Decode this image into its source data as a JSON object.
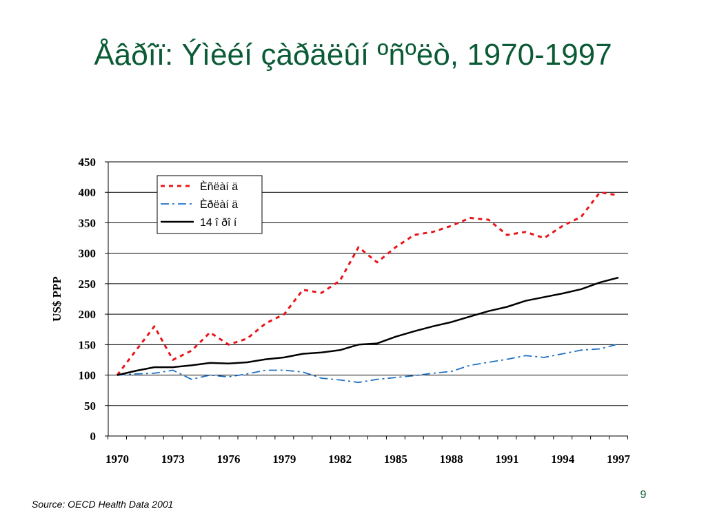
{
  "slide": {
    "title": "Åâðîï: Ýìèéí çàðäëûí ºñºëò, 1970-1997",
    "source": "Source: OECD Health Data 2001",
    "page_number": "9",
    "title_color": "#0b5b36"
  },
  "chart_data": {
    "type": "line",
    "title": "",
    "xlabel": "",
    "ylabel": "US$ PPP",
    "ylim": [
      0,
      450
    ],
    "yticks": [
      0,
      50,
      100,
      150,
      200,
      250,
      300,
      350,
      400,
      450
    ],
    "xtick_labels": [
      "1970",
      "1973",
      "1976",
      "1979",
      "1982",
      "1985",
      "1988",
      "1991",
      "1994",
      "1997"
    ],
    "grid": "horizontal",
    "legend_position": "top-left",
    "x": [
      1970,
      1971,
      1972,
      1973,
      1974,
      1975,
      1976,
      1977,
      1978,
      1979,
      1980,
      1981,
      1982,
      1983,
      1984,
      1985,
      1986,
      1987,
      1988,
      1989,
      1990,
      1991,
      1992,
      1993,
      1994,
      1995,
      1996,
      1997
    ],
    "series": [
      {
        "name": "Èñëàí ä",
        "color": "#e8141a",
        "style": "dotted",
        "values": [
          100,
          140,
          180,
          125,
          140,
          170,
          150,
          160,
          185,
          200,
          240,
          235,
          255,
          310,
          285,
          310,
          330,
          335,
          345,
          358,
          355,
          330,
          335,
          325,
          345,
          360,
          400,
          395
        ]
      },
      {
        "name": "Èðëàí ä",
        "color": "#1f6fc4",
        "style": "dash-dot",
        "values": [
          100,
          102,
          103,
          108,
          93,
          100,
          97,
          102,
          108,
          108,
          105,
          95,
          92,
          88,
          93,
          96,
          99,
          103,
          106,
          116,
          121,
          126,
          132,
          129,
          135,
          141,
          143,
          151
        ]
      },
      {
        "name": "14 î ðî í",
        "color": "#000000",
        "style": "solid",
        "values": [
          100,
          107,
          113,
          113,
          116,
          120,
          119,
          121,
          126,
          129,
          135,
          137,
          141,
          150,
          152,
          163,
          172,
          180,
          187,
          196,
          205,
          212,
          222,
          228,
          234,
          241,
          252,
          260
        ]
      }
    ]
  }
}
